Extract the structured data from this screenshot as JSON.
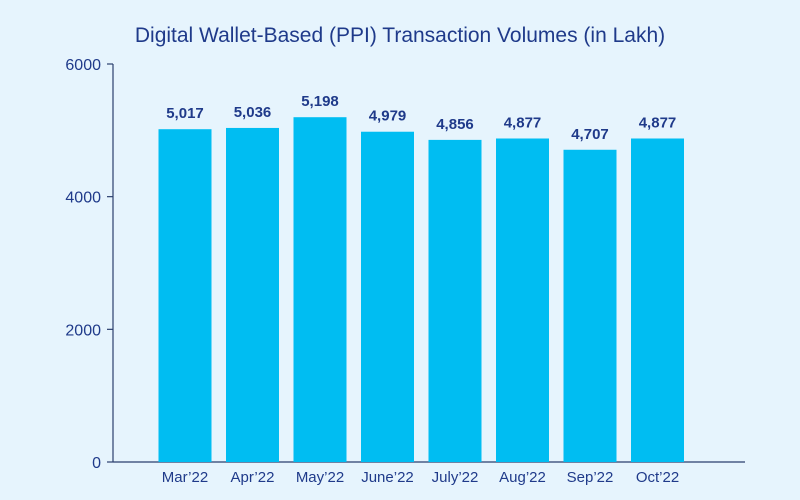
{
  "chart_data": {
    "type": "bar",
    "title": "Digital Wallet-Based (PPI) Transaction Volumes (in Lakh)",
    "xlabel": "",
    "ylabel": "",
    "ylim": [
      0,
      6000
    ],
    "yticks": [
      0,
      2000,
      4000,
      6000
    ],
    "categories": [
      "Mar’22",
      "Apr’22",
      "May’22",
      "June’22",
      "July’22",
      "Aug’22",
      "Sep’22",
      "Oct’22"
    ],
    "values": [
      5017,
      5036,
      5198,
      4979,
      4856,
      4877,
      4707,
      4877
    ],
    "value_labels": [
      "5,017",
      "5,036",
      "5,198",
      "4,979",
      "4,856",
      "4,877",
      "4,707",
      "4,877"
    ],
    "grid": false,
    "legend": "none"
  },
  "colors": {
    "background": "#e6f4fd",
    "bar": "#00bdf2",
    "text": "#1f3a8a",
    "axis": "#2b3f6e"
  }
}
